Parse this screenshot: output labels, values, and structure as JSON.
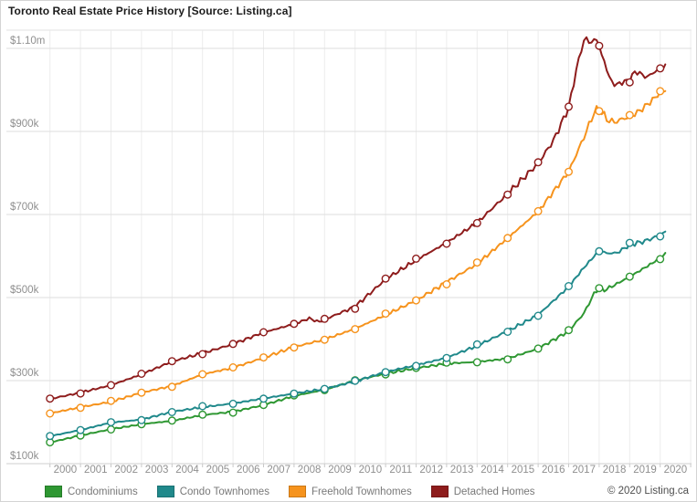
{
  "title": "Toronto Real Estate Price History [Source: Listing.ca]",
  "copyright": "© 2020 Listing.ca",
  "chart_data": {
    "type": "line",
    "title": "Toronto Real Estate Price History [Source: Listing.ca]",
    "unit": "price in CAD, values stored in thousands ($k)",
    "x_tick_labels": [
      "2000",
      "2001",
      "2002",
      "2003",
      "2004",
      "2005",
      "2006",
      "2007",
      "2008",
      "2009",
      "2010",
      "2011",
      "2012",
      "2013",
      "2014",
      "2015",
      "2016",
      "2017",
      "2018",
      "2019",
      "2020"
    ],
    "y_ticks": [
      {
        "label": "$1.10m",
        "value": 1100
      },
      {
        "label": "$900k",
        "value": 900
      },
      {
        "label": "$700k",
        "value": 700
      },
      {
        "label": "$500k",
        "value": 500
      },
      {
        "label": "$300k",
        "value": 300
      },
      {
        "label": "$100k",
        "value": 100
      }
    ],
    "ylim": [
      100,
      1145
    ],
    "xlim": [
      2000,
      2020.2
    ],
    "grid": true,
    "legend_position": "bottom",
    "marker_years": [
      2000,
      2001,
      2002,
      2003,
      2004,
      2005,
      2006,
      2007,
      2008,
      2009,
      2010,
      2011,
      2012,
      2013,
      2014,
      2015,
      2016,
      2017,
      2018,
      2019,
      2020
    ],
    "series": [
      {
        "name": "Condominiums",
        "color": "#2e9732",
        "points": [
          [
            2000,
            151
          ],
          [
            2001,
            168
          ],
          [
            2002,
            183
          ],
          [
            2003,
            195
          ],
          [
            2004,
            203
          ],
          [
            2005,
            217
          ],
          [
            2006,
            225
          ],
          [
            2007,
            241
          ],
          [
            2008,
            263
          ],
          [
            2009,
            278
          ],
          [
            2010,
            300
          ],
          [
            2011,
            317
          ],
          [
            2012,
            330
          ],
          [
            2013,
            341
          ],
          [
            2014,
            345
          ],
          [
            2015,
            353
          ],
          [
            2016,
            377
          ],
          [
            2017,
            419
          ],
          [
            2017.5,
            462
          ],
          [
            2017.8,
            505
          ],
          [
            2018,
            524
          ],
          [
            2018.15,
            517
          ],
          [
            2018.5,
            530
          ],
          [
            2019,
            550
          ],
          [
            2019.5,
            572
          ],
          [
            2020,
            595
          ],
          [
            2020.2,
            606
          ]
        ]
      },
      {
        "name": "Condo Townhomes",
        "color": "#20898b",
        "points": [
          [
            2000,
            166
          ],
          [
            2001,
            181
          ],
          [
            2002,
            199
          ],
          [
            2003,
            206
          ],
          [
            2004,
            225
          ],
          [
            2005,
            236
          ],
          [
            2006,
            245
          ],
          [
            2007,
            257
          ],
          [
            2008,
            269
          ],
          [
            2009,
            280
          ],
          [
            2010,
            298
          ],
          [
            2011,
            321
          ],
          [
            2012,
            337
          ],
          [
            2013,
            355
          ],
          [
            2014,
            384
          ],
          [
            2015,
            419
          ],
          [
            2016,
            458
          ],
          [
            2017,
            526
          ],
          [
            2017.5,
            572
          ],
          [
            2018,
            613
          ],
          [
            2018.3,
            606
          ],
          [
            2018.6,
            608
          ],
          [
            2019,
            627
          ],
          [
            2019.5,
            636
          ],
          [
            2020,
            650
          ],
          [
            2020.2,
            658
          ]
        ]
      },
      {
        "name": "Freehold Townhomes",
        "color": "#f6931d",
        "points": [
          [
            2000,
            221
          ],
          [
            2001,
            236
          ],
          [
            2002,
            249
          ],
          [
            2003,
            271
          ],
          [
            2004,
            287
          ],
          [
            2005,
            315
          ],
          [
            2006,
            331
          ],
          [
            2007,
            355
          ],
          [
            2008,
            381
          ],
          [
            2009,
            399
          ],
          [
            2010,
            425
          ],
          [
            2011,
            458
          ],
          [
            2012,
            493
          ],
          [
            2013,
            537
          ],
          [
            2014,
            581
          ],
          [
            2015,
            643
          ],
          [
            2016,
            707
          ],
          [
            2017,
            803
          ],
          [
            2017.5,
            886
          ],
          [
            2017.85,
            948
          ],
          [
            2018,
            955
          ],
          [
            2018.25,
            929
          ],
          [
            2018.5,
            922
          ],
          [
            2018.75,
            930
          ],
          [
            2019,
            935
          ],
          [
            2019.3,
            948
          ],
          [
            2019.6,
            966
          ],
          [
            2020,
            993
          ],
          [
            2020.2,
            1000
          ]
        ]
      },
      {
        "name": "Detached Homes",
        "color": "#8e1c1c",
        "points": [
          [
            2000,
            256
          ],
          [
            2001,
            271
          ],
          [
            2002,
            289
          ],
          [
            2003,
            315
          ],
          [
            2004,
            346
          ],
          [
            2005,
            366
          ],
          [
            2006,
            388
          ],
          [
            2007,
            416
          ],
          [
            2008,
            436
          ],
          [
            2008.5,
            450
          ],
          [
            2008.8,
            441
          ],
          [
            2009,
            447
          ],
          [
            2010,
            478
          ],
          [
            2011,
            544
          ],
          [
            2012,
            590
          ],
          [
            2013,
            632
          ],
          [
            2014,
            680
          ],
          [
            2015,
            750
          ],
          [
            2016,
            823
          ],
          [
            2016.5,
            878
          ],
          [
            2017,
            957
          ],
          [
            2017.3,
            1065
          ],
          [
            2017.55,
            1131
          ],
          [
            2017.7,
            1108
          ],
          [
            2017.85,
            1126
          ],
          [
            2018,
            1107
          ],
          [
            2018.2,
            1058
          ],
          [
            2018.45,
            1012
          ],
          [
            2018.7,
            1016
          ],
          [
            2019,
            1025
          ],
          [
            2019.2,
            1046
          ],
          [
            2019.4,
            1036
          ],
          [
            2019.6,
            1031
          ],
          [
            2019.8,
            1044
          ],
          [
            2020,
            1049
          ],
          [
            2020.2,
            1062
          ]
        ]
      }
    ]
  }
}
